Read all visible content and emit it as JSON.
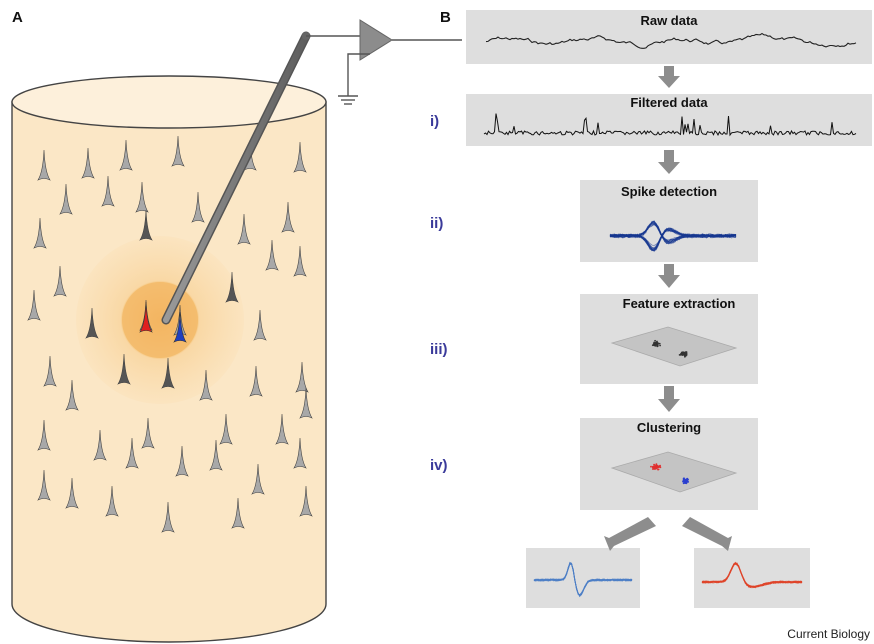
{
  "panels": {
    "a": "A",
    "b": "B"
  },
  "pipeline": {
    "raw": "Raw data",
    "filtered": "Filtered data",
    "detection": "Spike detection",
    "features": "Feature extraction",
    "clustering": "Clustering"
  },
  "steps": [
    "i)",
    "ii)",
    "iii)",
    "iv)"
  ],
  "credit": "Current Biology",
  "colors": {
    "tissue": "#fbe7c6",
    "halo": "#f6c478",
    "unit_red": "#e02020",
    "unit_blue": "#1f3fbf",
    "step_label": "#3a3a9a",
    "box": "#dedede"
  }
}
